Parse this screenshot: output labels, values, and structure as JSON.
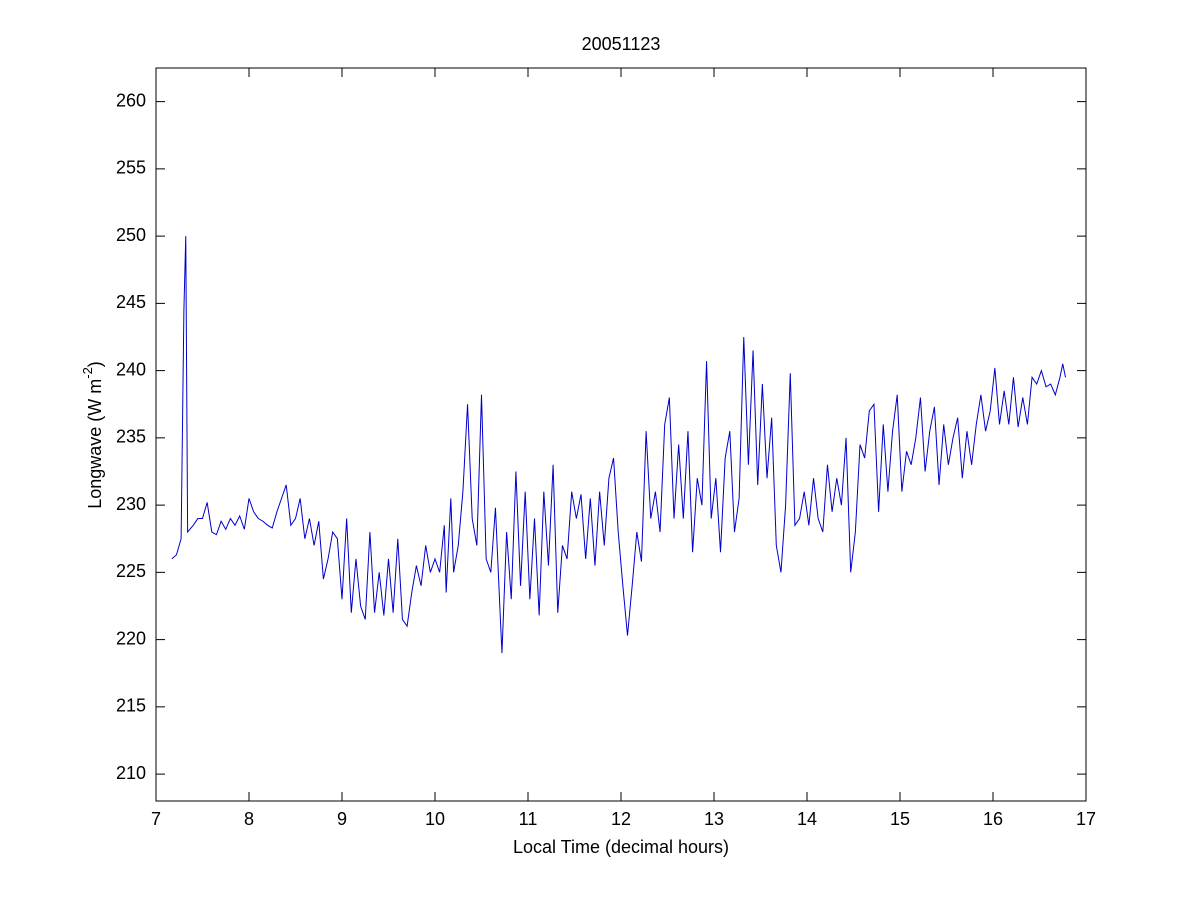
{
  "chart_data": {
    "type": "line",
    "title": "20051123",
    "xlabel": "Local Time (decimal hours)",
    "ylabel": [
      "Longwave (W m",
      "-2",
      ")"
    ],
    "xlim": [
      7,
      17
    ],
    "xticks": [
      7,
      8,
      9,
      10,
      11,
      12,
      13,
      14,
      15,
      16,
      17
    ],
    "ylim": [
      208,
      262.5
    ],
    "yticks": [
      210,
      215,
      220,
      225,
      230,
      235,
      240,
      245,
      250,
      255,
      260
    ],
    "box": true,
    "series": [
      {
        "color": "#0000cc",
        "x": [
          7.17,
          7.22,
          7.27,
          7.3,
          7.32,
          7.34,
          7.4,
          7.45,
          7.5,
          7.55,
          7.6,
          7.65,
          7.7,
          7.75,
          7.8,
          7.85,
          7.9,
          7.95,
          8.0,
          8.05,
          8.1,
          8.15,
          8.2,
          8.25,
          8.3,
          8.35,
          8.4,
          8.45,
          8.5,
          8.55,
          8.6,
          8.65,
          8.7,
          8.75,
          8.8,
          8.85,
          8.9,
          8.95,
          9.0,
          9.05,
          9.1,
          9.15,
          9.2,
          9.25,
          9.3,
          9.35,
          9.4,
          9.45,
          9.5,
          9.55,
          9.6,
          9.65,
          9.7,
          9.75,
          9.8,
          9.85,
          9.9,
          9.95,
          10.0,
          10.05,
          10.1,
          10.12,
          10.17,
          10.2,
          10.25,
          10.3,
          10.35,
          10.4,
          10.45,
          10.5,
          10.55,
          10.6,
          10.65,
          10.7,
          10.72,
          10.77,
          10.82,
          10.87,
          10.92,
          10.97,
          11.02,
          11.07,
          11.12,
          11.17,
          11.22,
          11.27,
          11.32,
          11.37,
          11.42,
          11.47,
          11.52,
          11.57,
          11.62,
          11.67,
          11.72,
          11.77,
          11.82,
          11.87,
          11.92,
          11.97,
          12.02,
          12.07,
          12.12,
          12.17,
          12.22,
          12.27,
          12.32,
          12.37,
          12.42,
          12.47,
          12.52,
          12.57,
          12.62,
          12.67,
          12.72,
          12.77,
          12.82,
          12.87,
          12.92,
          12.97,
          13.02,
          13.07,
          13.12,
          13.17,
          13.22,
          13.27,
          13.32,
          13.37,
          13.42,
          13.47,
          13.52,
          13.57,
          13.62,
          13.67,
          13.72,
          13.77,
          13.82,
          13.87,
          13.92,
          13.97,
          14.02,
          14.07,
          14.12,
          14.17,
          14.22,
          14.27,
          14.32,
          14.37,
          14.42,
          14.47,
          14.52,
          14.57,
          14.62,
          14.67,
          14.72,
          14.77,
          14.82,
          14.87,
          14.92,
          14.97,
          15.02,
          15.07,
          15.12,
          15.17,
          15.22,
          15.27,
          15.32,
          15.37,
          15.42,
          15.47,
          15.52,
          15.57,
          15.62,
          15.67,
          15.72,
          15.77,
          15.82,
          15.87,
          15.92,
          15.97,
          16.02,
          16.07,
          16.12,
          16.17,
          16.22,
          16.27,
          16.32,
          16.37,
          16.42,
          16.47,
          16.52,
          16.57,
          16.62,
          16.67,
          16.72,
          16.75,
          16.78
        ],
        "values": [
          226,
          226.3,
          227.5,
          244.5,
          250,
          228,
          228.5,
          229,
          229,
          230.2,
          228,
          227.8,
          228.8,
          228.2,
          229,
          228.5,
          229.2,
          228.2,
          230.5,
          229.5,
          229,
          228.8,
          228.5,
          228.3,
          229.5,
          230.5,
          231.5,
          228.5,
          229,
          230.5,
          227.5,
          229,
          227,
          228.8,
          224.5,
          226,
          228,
          227.5,
          223,
          229,
          222,
          226,
          222.5,
          221.5,
          228,
          222,
          225,
          221.8,
          226,
          222,
          227.5,
          221.5,
          221,
          223.5,
          225.5,
          224,
          227,
          225,
          226,
          225,
          228.5,
          223.5,
          230.5,
          225,
          227,
          231,
          237.5,
          229,
          227,
          238.2,
          226,
          225,
          229.8,
          222,
          219,
          228,
          223,
          232.5,
          224,
          231,
          223,
          229,
          221.8,
          231,
          225.5,
          233,
          222,
          227,
          226,
          231,
          229,
          230.8,
          226,
          230.5,
          225.5,
          231,
          227,
          232,
          233.5,
          228,
          224,
          220.3,
          224,
          228,
          225.8,
          235.5,
          229,
          231,
          228,
          236,
          238,
          229,
          234.5,
          229,
          235.5,
          226.5,
          232,
          230,
          240.7,
          229,
          232,
          226.5,
          233.5,
          235.5,
          228,
          230.5,
          242.5,
          233,
          241.5,
          231.5,
          239,
          232,
          236.5,
          227,
          225,
          230,
          239.8,
          228.5,
          229,
          231,
          228.5,
          232,
          229,
          228,
          233,
          229.5,
          232,
          230,
          235,
          225,
          228,
          234.5,
          233.5,
          237,
          237.5,
          229.5,
          236,
          231,
          235.5,
          238.2,
          231,
          234,
          233,
          235,
          238,
          232.5,
          235.5,
          237.3,
          231.5,
          236,
          233,
          235,
          236.5,
          232,
          235.5,
          233,
          236,
          238.2,
          235.5,
          237,
          240.2,
          236,
          238.5,
          236,
          239.5,
          235.8,
          238,
          236,
          239.5,
          239,
          240,
          238.8,
          239,
          238.2,
          239.5,
          240.5,
          239.5
        ]
      }
    ]
  }
}
